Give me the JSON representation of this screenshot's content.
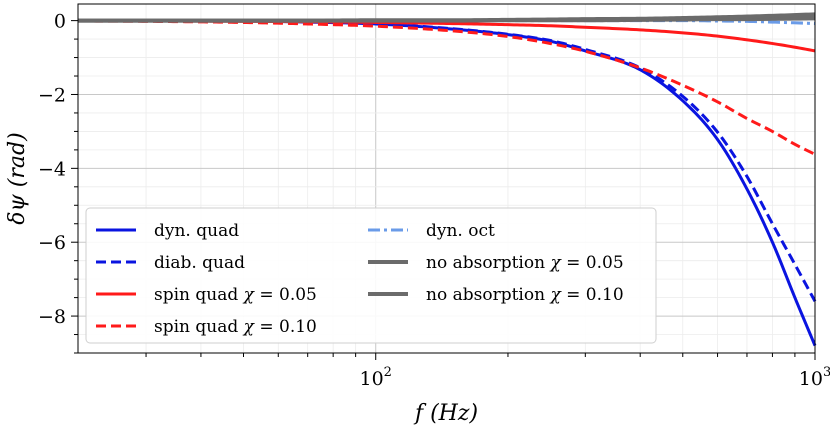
{
  "chart_data": {
    "type": "line",
    "title": "",
    "xlabel": "f (Hz)",
    "ylabel": "δψ (rad)",
    "xscale": "log",
    "xlim": [
      21,
      1000
    ],
    "ylim": [
      -9.0,
      0.45
    ],
    "x_major_ticks": [
      100,
      1000
    ],
    "x_tick_labels": [
      {
        "base": "10",
        "exp": "2"
      },
      {
        "base": "10",
        "exp": "3"
      }
    ],
    "y_ticks": [
      0,
      -2,
      -4,
      -6,
      -8
    ],
    "y_tick_labels": [
      "0",
      "−2",
      "−4",
      "−6",
      "−8"
    ],
    "y_minor_step": 0.5,
    "grid": true,
    "legend_position": "lower-left",
    "x": [
      21,
      30,
      50,
      70,
      100,
      150,
      200,
      250,
      300,
      400,
      500,
      600,
      700,
      800,
      900,
      1000
    ],
    "series": [
      {
        "name": "dyn. quad",
        "color": "#0a14e0",
        "style": "solid",
        "width": 3,
        "values": [
          0,
          0,
          -0.01,
          -0.04,
          -0.09,
          -0.23,
          -0.38,
          -0.56,
          -0.82,
          -1.33,
          -2.17,
          -3.22,
          -4.56,
          -6.0,
          -7.5,
          -8.8
        ]
      },
      {
        "name": "diab. quad",
        "color": "#0a14e0",
        "style": "dashed",
        "width": 3,
        "values": [
          0,
          0,
          -0.01,
          -0.04,
          -0.09,
          -0.22,
          -0.37,
          -0.54,
          -0.78,
          -1.28,
          -2.05,
          -3.02,
          -4.22,
          -5.5,
          -6.6,
          -7.6
        ]
      },
      {
        "name": "spin quad χ = 0.05",
        "color": "#ff1a1a",
        "style": "solid",
        "width": 3,
        "values": [
          -0.01,
          -0.01,
          -0.02,
          -0.03,
          -0.05,
          -0.08,
          -0.11,
          -0.14,
          -0.18,
          -0.25,
          -0.33,
          -0.42,
          -0.52,
          -0.62,
          -0.72,
          -0.82
        ]
      },
      {
        "name": "spin quad χ = 0.10",
        "color": "#ff1a1a",
        "style": "dashed",
        "width": 3,
        "values": [
          -0.01,
          -0.02,
          -0.05,
          -0.09,
          -0.15,
          -0.28,
          -0.43,
          -0.62,
          -0.83,
          -1.28,
          -1.75,
          -2.2,
          -2.65,
          -3.0,
          -3.35,
          -3.62
        ]
      },
      {
        "name": "dyn. oct",
        "color": "#6a9be8",
        "style": "dashdot",
        "width": 3,
        "values": [
          0,
          0,
          0,
          0,
          0,
          0,
          0,
          0,
          0,
          0,
          0,
          -0.01,
          -0.02,
          -0.04,
          -0.06,
          -0.08
        ]
      },
      {
        "name": "no absorption χ = 0.05",
        "color": "#6b6b6b",
        "style": "solid",
        "width": 4,
        "values": [
          0,
          0,
          0,
          0,
          0,
          0,
          0.01,
          0.01,
          0.01,
          0.02,
          0.03,
          0.04,
          0.04,
          0.05,
          0.06,
          0.07
        ]
      },
      {
        "name": "no absorption χ = 0.10",
        "color": "#6b6b6b",
        "style": "solid",
        "width": 4,
        "values": [
          0,
          0,
          0,
          0,
          0.01,
          0.01,
          0.02,
          0.03,
          0.04,
          0.05,
          0.07,
          0.09,
          0.11,
          0.13,
          0.15,
          0.17
        ]
      }
    ],
    "legend": {
      "columns": [
        [
          {
            "series": 0,
            "label": "dyn. quad",
            "sym": ""
          },
          {
            "series": 1,
            "label": "diab. quad",
            "sym": ""
          },
          {
            "series": 2,
            "label": "spin quad ",
            "sym": "χ",
            "tail": " = 0.05"
          },
          {
            "series": 3,
            "label": "spin quad ",
            "sym": "χ",
            "tail": " = 0.10"
          }
        ],
        [
          {
            "series": 4,
            "label": "dyn. oct",
            "sym": ""
          },
          {
            "series": 5,
            "label": "no absorption ",
            "sym": "χ",
            "tail": " = 0.05"
          },
          {
            "series": 6,
            "label": "no absorption ",
            "sym": "χ",
            "tail": " = 0.10"
          }
        ]
      ]
    }
  }
}
